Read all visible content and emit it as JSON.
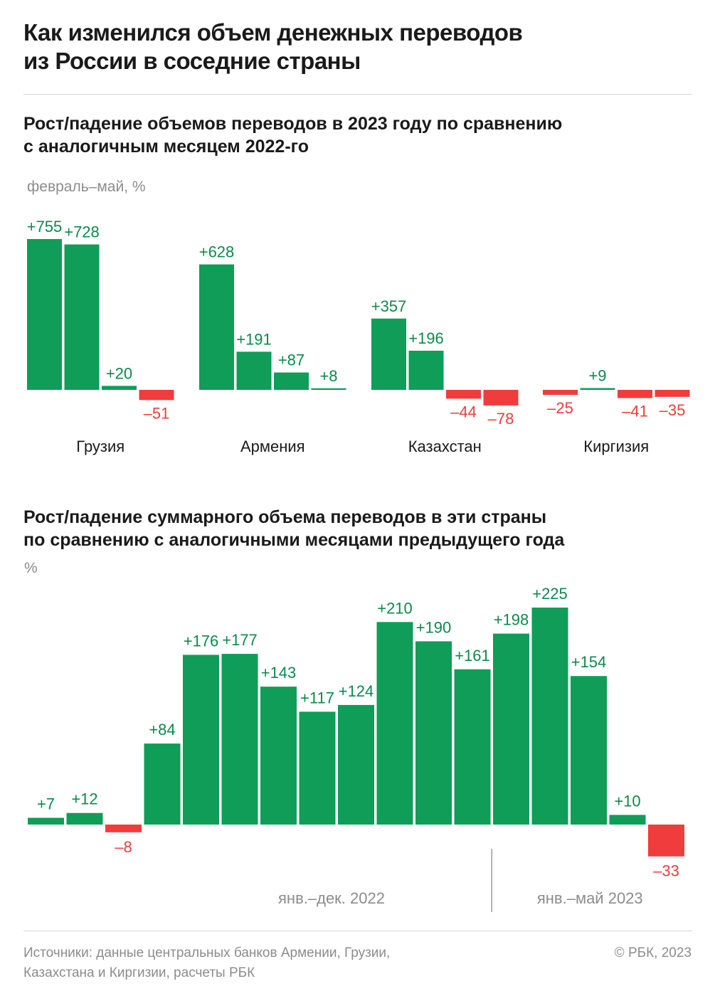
{
  "title_line1": "Как изменился объем денежных переводов",
  "title_line2": "из России в соседние страны",
  "chart1": {
    "subtitle_line1": "Рост/падение объемов переводов в 2023 году по сравнению",
    "subtitle_line2": "с аналогичным месяцем 2022-го",
    "unit": "февраль–май, %"
  },
  "chart2": {
    "subtitle_line1": "Рост/падение суммарного объема переводов в эти страны",
    "subtitle_line2": "по сравнению с аналогичными месяцами предыдущего года",
    "unit": "%"
  },
  "footer": {
    "source_line1": "Источники: данные центральных банков Армении, Грузии,",
    "source_line2": "Казахстана и Киргизии, расчеты РБК",
    "copyright": "© РБК, 2023"
  },
  "colors": {
    "positive": "#0f9d58",
    "negative": "#f03c3c",
    "positive_label": "#0c8a4c",
    "negative_label": "#f03c3c"
  },
  "chart_data": [
    {
      "type": "bar",
      "groups": [
        {
          "name": "Грузия",
          "values": [
            755,
            728,
            20,
            -51
          ],
          "labels": [
            "+755",
            "+728",
            "+20",
            "–51"
          ]
        },
        {
          "name": "Армения",
          "values": [
            628,
            191,
            87,
            8
          ],
          "labels": [
            "+628",
            "+191",
            "+87",
            "+8"
          ]
        },
        {
          "name": "Казахстан",
          "values": [
            357,
            196,
            -44,
            -78
          ],
          "labels": [
            "+357",
            "+196",
            "–44",
            "–78"
          ]
        },
        {
          "name": "Киргизия",
          "values": [
            -25,
            9,
            -41,
            -35
          ],
          "labels": [
            "–25",
            "+9",
            "–41",
            "–35"
          ]
        }
      ]
    },
    {
      "type": "bar",
      "values": [
        7,
        12,
        -8,
        84,
        176,
        177,
        143,
        117,
        124,
        210,
        190,
        161,
        198,
        225,
        154,
        10,
        -33
      ],
      "labels": [
        "+7",
        "+12",
        "–8",
        "+84",
        "+176",
        "+177",
        "+143",
        "+117",
        "+124",
        "+210",
        "+190",
        "+161",
        "+198",
        "+225",
        "+154",
        "+10",
        "–33"
      ],
      "periods": [
        {
          "label": "янв.–дек. 2022",
          "count": 12
        },
        {
          "label": "янв.–май 2023",
          "count": 5
        }
      ]
    }
  ]
}
